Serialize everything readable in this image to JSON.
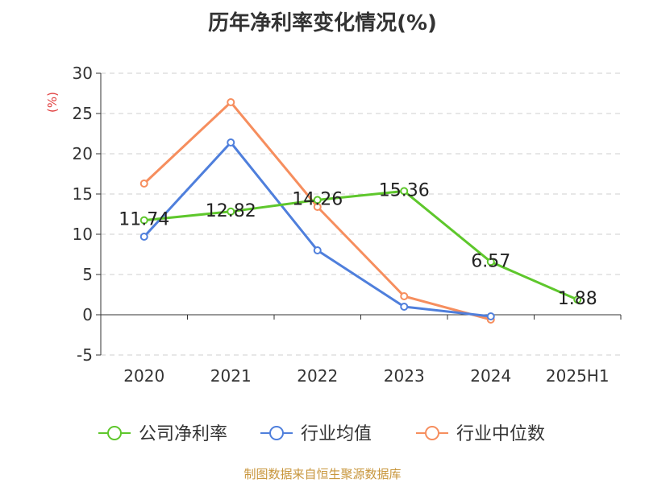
{
  "chart_data": {
    "type": "line",
    "title": "历年净利率变化情况(%)",
    "ylabel": "(%)",
    "categories": [
      "2020",
      "2021",
      "2022",
      "2023",
      "2024",
      "2025H1"
    ],
    "y_ticks": [
      "30",
      "25",
      "20",
      "15",
      "10",
      "5",
      "0",
      "-5"
    ],
    "ylim": [
      -5,
      30
    ],
    "grid": true,
    "legend_position": "bottom",
    "series": [
      {
        "name": "公司净利率",
        "color": "#5ec72c",
        "values": [
          11.74,
          12.82,
          14.26,
          15.36,
          6.57,
          1.88
        ],
        "labels": [
          "11.74",
          "12.82",
          "14.26",
          "15.36",
          "6.57",
          "1.88"
        ]
      },
      {
        "name": "行业均值",
        "color": "#4f7fdc",
        "values": [
          9.7,
          21.4,
          8.0,
          1.0,
          -0.2,
          null
        ]
      },
      {
        "name": "行业中位数",
        "color": "#f68e5e",
        "values": [
          16.3,
          26.4,
          13.4,
          2.3,
          -0.6,
          null
        ]
      }
    ]
  },
  "source_note": "制图数据来自恒生聚源数据库"
}
